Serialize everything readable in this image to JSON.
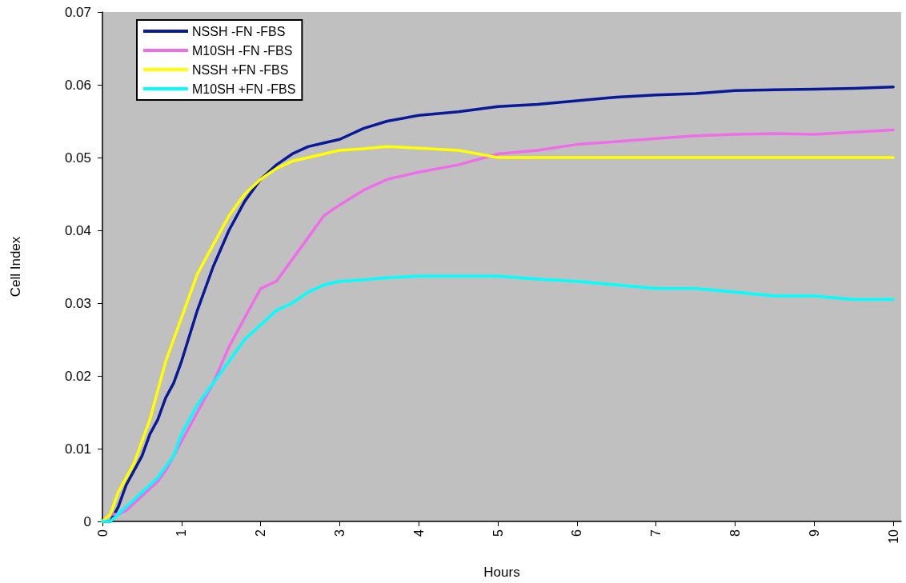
{
  "chart_data": {
    "type": "line",
    "xlabel": "Hours",
    "ylabel": "Cell Index",
    "x": [
      0,
      0.1,
      0.2,
      0.3,
      0.4,
      0.5,
      0.6,
      0.7,
      0.8,
      0.9,
      1.0,
      1.2,
      1.4,
      1.6,
      1.8,
      2.0,
      2.2,
      2.4,
      2.6,
      2.8,
      3.0,
      3.3,
      3.6,
      4,
      4.5,
      5,
      5.5,
      6,
      6.5,
      7,
      7.5,
      8,
      8.5,
      9,
      9.5,
      10
    ],
    "series": [
      {
        "name": "NSSH -FN -FBS",
        "color": "#0a1a96",
        "values": [
          0,
          0,
          0.002,
          0.005,
          0.007,
          0.009,
          0.012,
          0.014,
          0.017,
          0.019,
          0.022,
          0.029,
          0.035,
          0.04,
          0.044,
          0.047,
          0.049,
          0.0505,
          0.0515,
          0.052,
          0.0525,
          0.054,
          0.055,
          0.0558,
          0.0563,
          0.057,
          0.0573,
          0.0578,
          0.0583,
          0.0586,
          0.0588,
          0.0592,
          0.0593,
          0.0594,
          0.0595,
          0.0597
        ]
      },
      {
        "name": "M10SH -FN -FBS",
        "color": "#ee6ee8",
        "values": [
          0,
          0.001,
          0.001,
          0.0015,
          0.0025,
          0.0035,
          0.0045,
          0.0055,
          0.007,
          0.009,
          0.011,
          0.015,
          0.019,
          0.024,
          0.028,
          0.032,
          0.033,
          0.036,
          0.039,
          0.042,
          0.0435,
          0.0455,
          0.047,
          0.048,
          0.049,
          0.0505,
          0.051,
          0.0518,
          0.0522,
          0.0526,
          0.053,
          0.0532,
          0.0533,
          0.0532,
          0.0535,
          0.0538
        ]
      },
      {
        "name": "NSSH +FN -FBS",
        "color": "#ffff00",
        "values": [
          0,
          0.001,
          0.004,
          0.006,
          0.008,
          0.011,
          0.014,
          0.018,
          0.022,
          0.025,
          0.028,
          0.034,
          0.038,
          0.042,
          0.045,
          0.047,
          0.0485,
          0.0495,
          0.05,
          0.0505,
          0.051,
          0.0512,
          0.0515,
          0.0513,
          0.051,
          0.05,
          0.05,
          0.05,
          0.05,
          0.05,
          0.05,
          0.05,
          0.05,
          0.05,
          0.05,
          0.05
        ]
      },
      {
        "name": "M10SH +FN -FBS",
        "color": "#00ffff",
        "values": [
          0,
          0,
          0.001,
          0.002,
          0.003,
          0.004,
          0.005,
          0.006,
          0.0075,
          0.009,
          0.012,
          0.016,
          0.019,
          0.022,
          0.025,
          0.027,
          0.029,
          0.03,
          0.0315,
          0.0325,
          0.033,
          0.0332,
          0.0335,
          0.0337,
          0.0337,
          0.0337,
          0.0333,
          0.033,
          0.0325,
          0.032,
          0.032,
          0.0315,
          0.031,
          0.031,
          0.0305,
          0.0305
        ]
      }
    ],
    "xlim": [
      0,
      10.1
    ],
    "xticks": [
      0,
      1,
      2,
      3,
      4,
      5,
      6,
      7,
      8,
      9,
      10
    ],
    "ylim": [
      0,
      0.07
    ],
    "yticks": [
      0,
      0.01,
      0.02,
      0.03,
      0.04,
      0.05,
      0.06,
      0.07
    ],
    "grid": false,
    "legend": "top left",
    "marker": "none",
    "line_style": "solid"
  }
}
